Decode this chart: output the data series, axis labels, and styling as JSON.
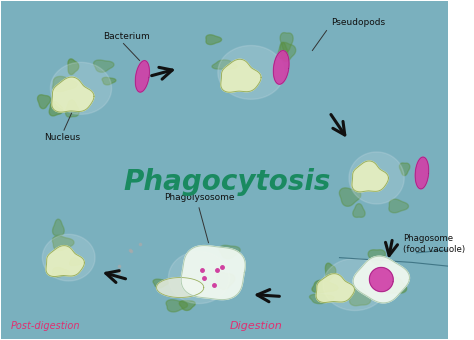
{
  "title": "Phagocytosis",
  "title_color": "#1a8a60",
  "title_fontsize": 20,
  "title_fontweight": "bold",
  "background_color": "#ffffff",
  "labels": {
    "bacterium": "Bacterium",
    "nucleus": "Nucleus",
    "pseudopods": "Pseudopods",
    "phagosome": "Phagosome\n(food vacuole)",
    "digestion": "Digestion",
    "phagolysosome": "Phagolysosome",
    "post_digestion": "Post-digestion"
  },
  "label_colors": {
    "bacterium": "#111111",
    "nucleus": "#111111",
    "pseudopods": "#111111",
    "phagosome": "#111111",
    "digestion": "#e03070",
    "phagolysosome": "#111111",
    "post_digestion": "#e03070"
  },
  "cell_fill": "#7fb0c0",
  "cell_fill2": "#5a9aaa",
  "cell_edge": "#3a7080",
  "nucleus_fill": "#e8f0c0",
  "nucleus_edge": "#9ab060",
  "bacterium_fill": "#d040a8",
  "vacuole_fill": "#f0f8f0",
  "vacuole_edge": "#b0ccb0",
  "green_blob": "#5a9040",
  "arrow_color": "#111111"
}
